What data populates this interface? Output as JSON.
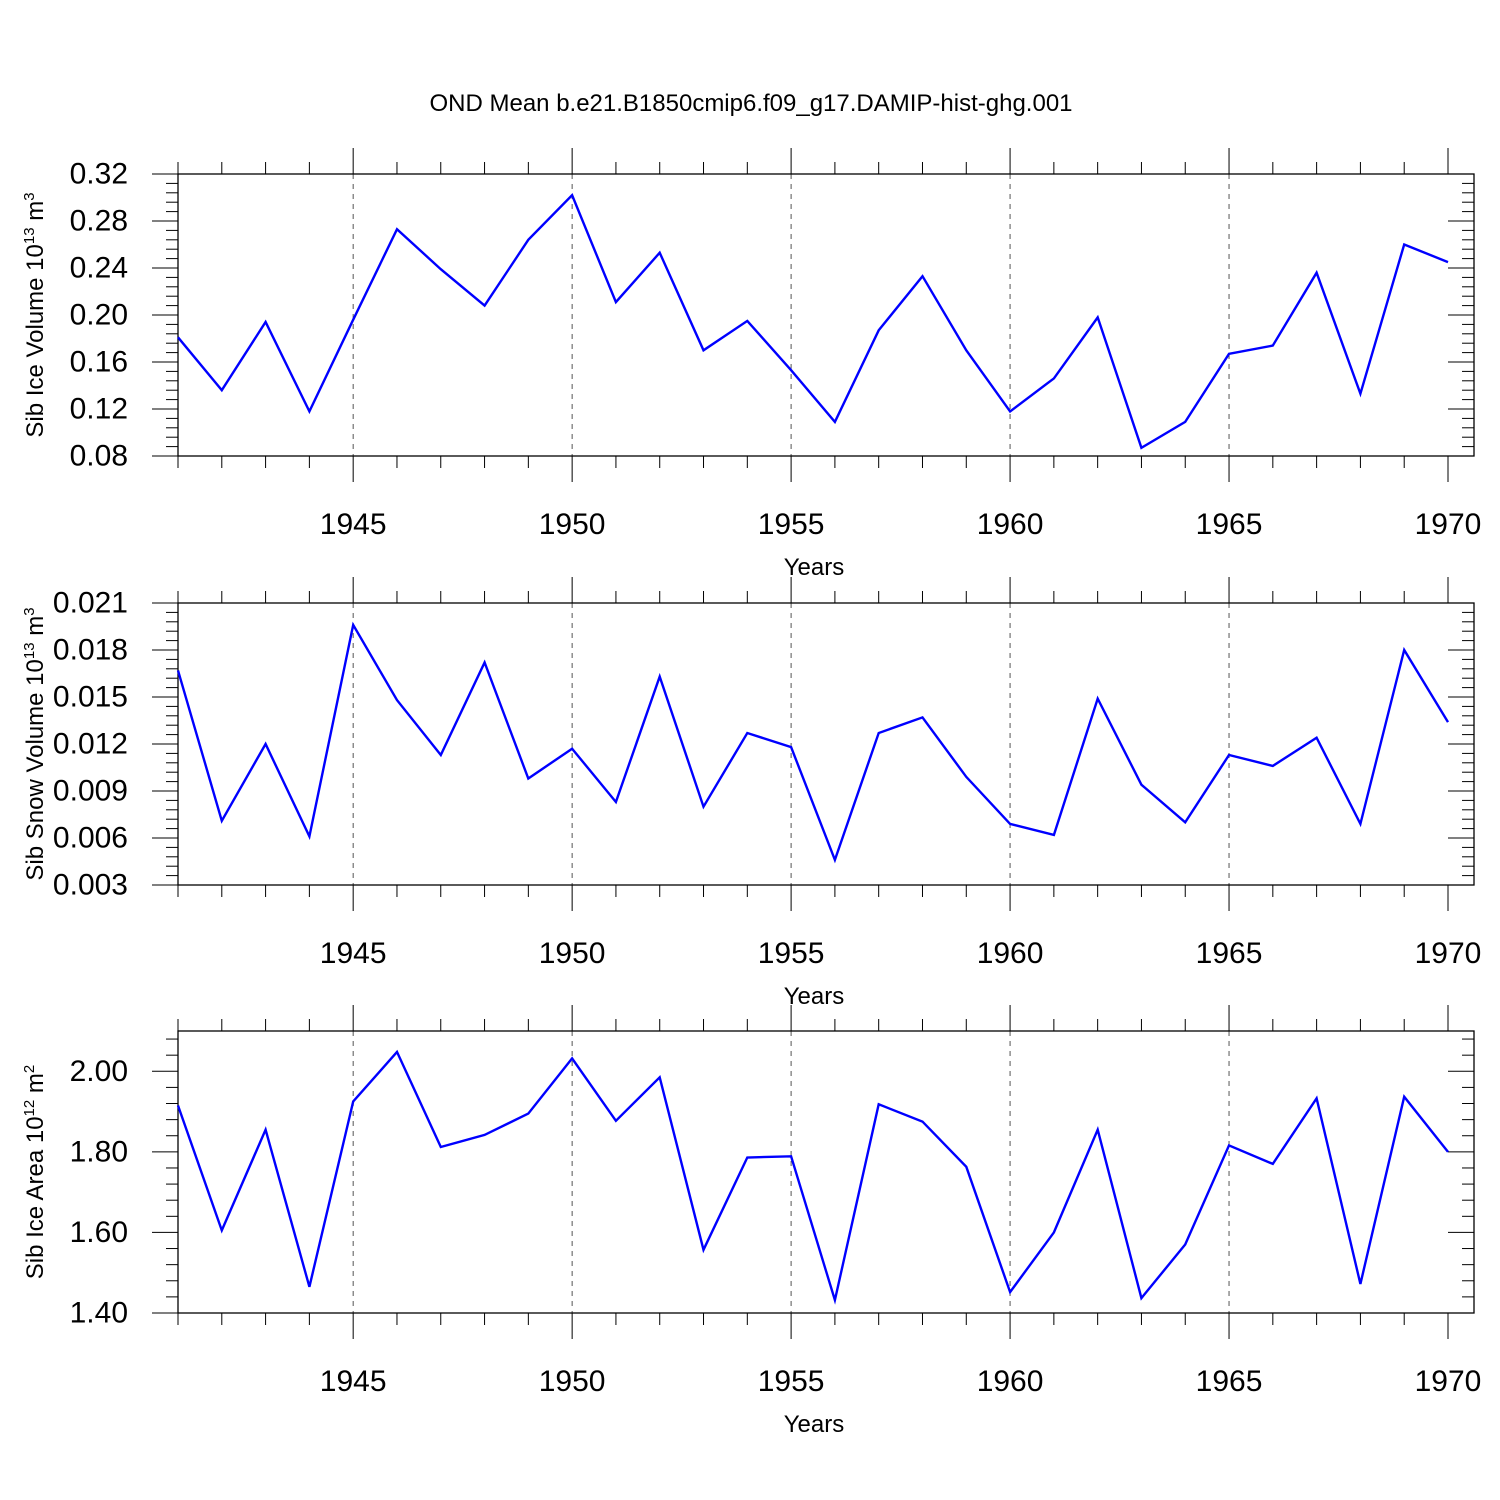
{
  "title": "OND Mean b.e21.B1850cmip6.f09_g17.DAMIP-hist-ghg.001",
  "chart_data": [
    {
      "type": "line",
      "ylabel": {
        "main": "Sib Ice Volume 10",
        "exp": "13",
        "unit": " m",
        "unit_exp": "3"
      },
      "xlabel": "Years",
      "xlim": [
        1941,
        1970
      ],
      "ylim": [
        0.08,
        0.32
      ],
      "yticks": [
        0.08,
        0.12,
        0.16,
        0.2,
        0.24,
        0.28,
        0.32
      ],
      "ytick_labels": [
        "0.08",
        "0.12",
        "0.16",
        "0.20",
        "0.24",
        "0.28",
        "0.32"
      ],
      "xticks": [
        1945,
        1950,
        1955,
        1960,
        1965,
        1970
      ],
      "xtick_labels": [
        "1945",
        "1950",
        "1955",
        "1960",
        "1965",
        "1970"
      ],
      "color": "#0000ff",
      "series": [
        {
          "name": "Sib Ice Volume",
          "x": [
            1941,
            1942,
            1943,
            1944,
            1945,
            1946,
            1947,
            1948,
            1949,
            1950,
            1951,
            1952,
            1953,
            1954,
            1955,
            1956,
            1957,
            1958,
            1959,
            1960,
            1961,
            1962,
            1963,
            1964,
            1965,
            1966,
            1967,
            1968,
            1969,
            1970
          ],
          "values": [
            0.181,
            0.136,
            0.194,
            0.118,
            0.196,
            0.273,
            0.239,
            0.208,
            0.264,
            0.302,
            0.211,
            0.253,
            0.17,
            0.195,
            0.153,
            0.109,
            0.187,
            0.233,
            0.17,
            0.118,
            0.146,
            0.198,
            0.087,
            0.109,
            0.167,
            0.174,
            0.236,
            0.133,
            0.26,
            0.245
          ]
        }
      ]
    },
    {
      "type": "line",
      "ylabel": {
        "main": "Sib Snow Volume 10",
        "exp": "13",
        "unit": " m",
        "unit_exp": "3"
      },
      "xlabel": "Years",
      "xlim": [
        1941,
        1970
      ],
      "ylim": [
        0.003,
        0.021
      ],
      "yticks": [
        0.003,
        0.006,
        0.009,
        0.012,
        0.015,
        0.018,
        0.021
      ],
      "ytick_labels": [
        "0.003",
        "0.006",
        "0.009",
        "0.012",
        "0.015",
        "0.018",
        "0.021"
      ],
      "xticks": [
        1945,
        1950,
        1955,
        1960,
        1965,
        1970
      ],
      "xtick_labels": [
        "1945",
        "1950",
        "1955",
        "1960",
        "1965",
        "1970"
      ],
      "color": "#0000ff",
      "series": [
        {
          "name": "Sib Snow Volume",
          "x": [
            1941,
            1942,
            1943,
            1944,
            1945,
            1946,
            1947,
            1948,
            1949,
            1950,
            1951,
            1952,
            1953,
            1954,
            1955,
            1956,
            1957,
            1958,
            1959,
            1960,
            1961,
            1962,
            1963,
            1964,
            1965,
            1966,
            1967,
            1968,
            1969,
            1970
          ],
          "values": [
            0.0167,
            0.0071,
            0.012,
            0.0061,
            0.0196,
            0.0148,
            0.0113,
            0.0172,
            0.0098,
            0.0117,
            0.0083,
            0.0163,
            0.008,
            0.0127,
            0.0118,
            0.0046,
            0.0127,
            0.0137,
            0.0099,
            0.0069,
            0.0062,
            0.0149,
            0.0094,
            0.007,
            0.0113,
            0.0106,
            0.0124,
            0.0069,
            0.018,
            0.0134
          ]
        }
      ]
    },
    {
      "type": "line",
      "ylabel": {
        "main": "Sib Ice Area 10",
        "exp": "12",
        "unit": " m",
        "unit_exp": "2"
      },
      "xlabel": "Years",
      "xlim": [
        1941,
        1970
      ],
      "ylim": [
        1.4,
        2.1
      ],
      "yticks": [
        1.4,
        1.6,
        1.8,
        2.0
      ],
      "ytick_labels": [
        "1.40",
        "1.60",
        "1.80",
        "2.00"
      ],
      "xticks": [
        1945,
        1950,
        1955,
        1960,
        1965,
        1970
      ],
      "xtick_labels": [
        "1945",
        "1950",
        "1955",
        "1960",
        "1965",
        "1970"
      ],
      "color": "#0000ff",
      "series": [
        {
          "name": "Sib Ice Area",
          "x": [
            1941,
            1942,
            1943,
            1944,
            1945,
            1946,
            1947,
            1948,
            1949,
            1950,
            1951,
            1952,
            1953,
            1954,
            1955,
            1956,
            1957,
            1958,
            1959,
            1960,
            1961,
            1962,
            1963,
            1964,
            1965,
            1966,
            1967,
            1968,
            1969,
            1970
          ],
          "values": [
            1.915,
            1.605,
            1.855,
            1.465,
            1.925,
            2.048,
            1.812,
            1.842,
            1.895,
            2.032,
            1.877,
            1.985,
            1.557,
            1.786,
            1.789,
            1.432,
            1.918,
            1.875,
            1.763,
            1.452,
            1.6,
            1.855,
            1.437,
            1.57,
            1.816,
            1.77,
            1.933,
            1.472,
            1.937,
            1.8
          ]
        }
      ]
    }
  ]
}
